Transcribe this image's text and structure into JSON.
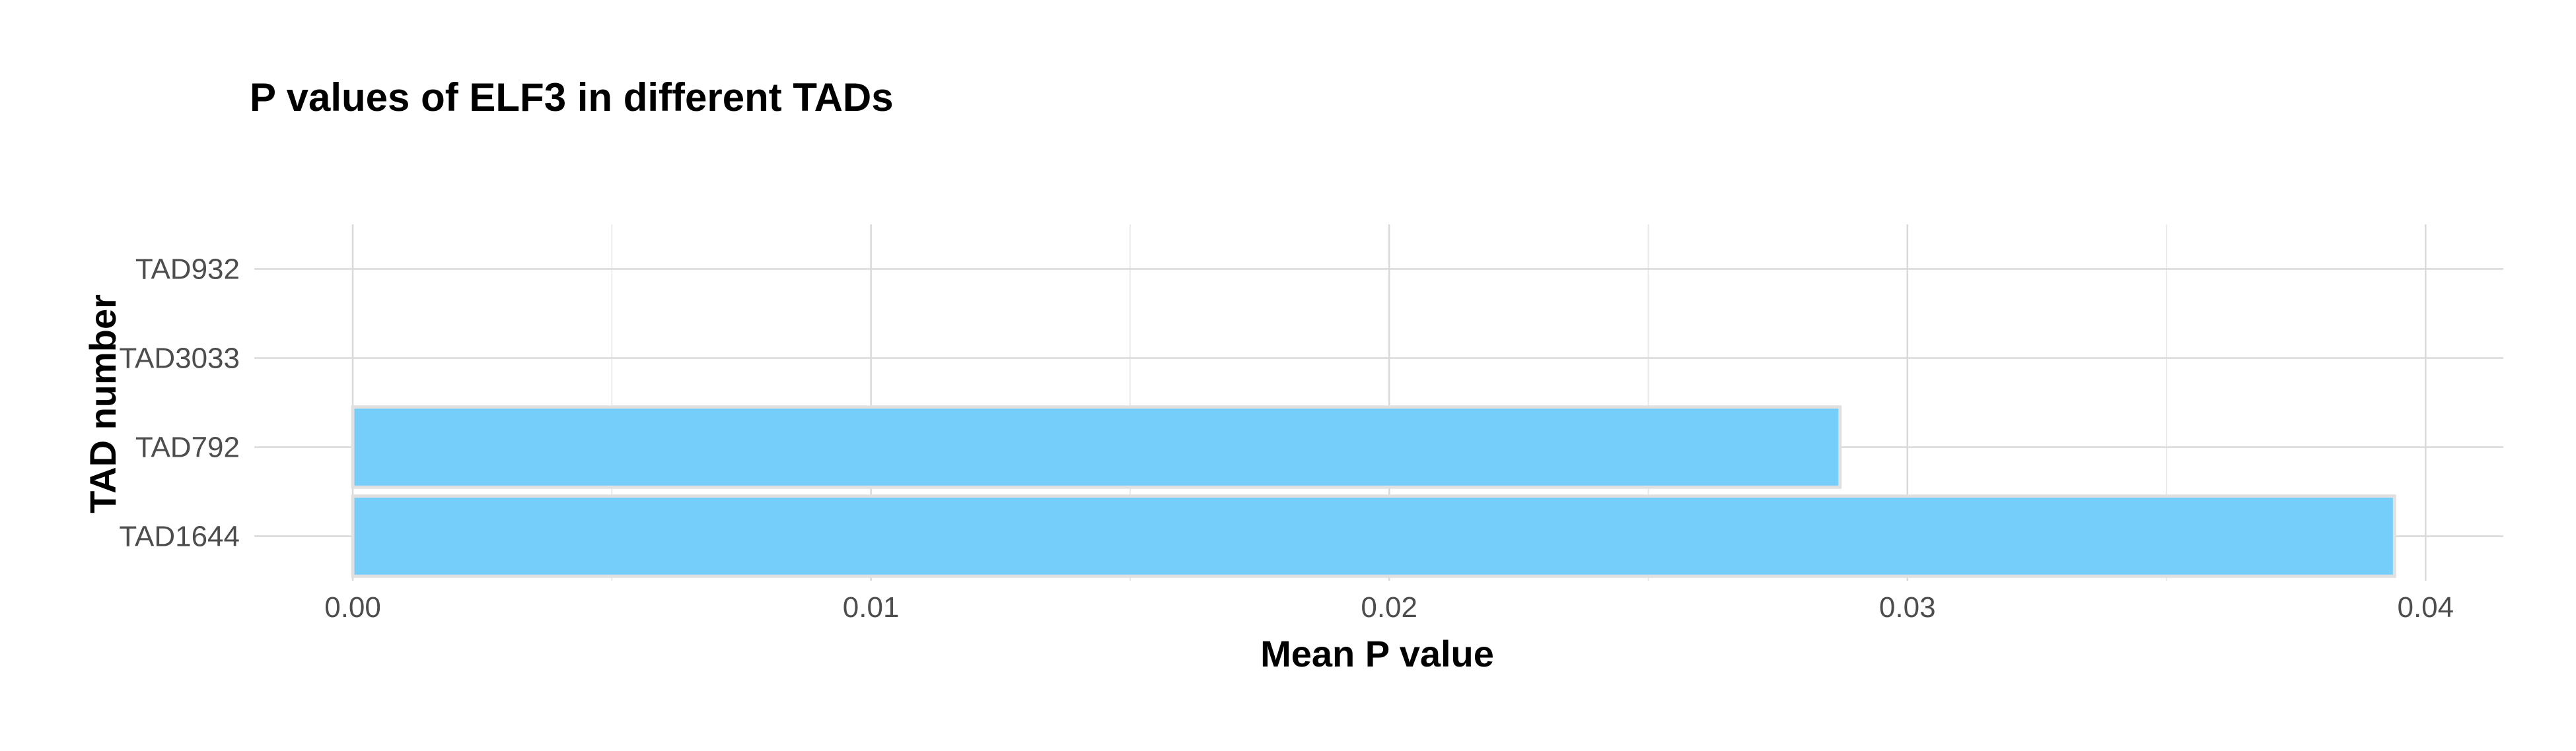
{
  "chart_data": {
    "type": "bar",
    "orientation": "horizontal",
    "title": "P values of ELF3 in different TADs",
    "xlabel": "Mean P value",
    "ylabel": "TAD number",
    "categories": [
      "TAD932",
      "TAD3033",
      "TAD792",
      "TAD1644"
    ],
    "values": [
      0.0,
      0.0,
      0.0287,
      0.0394
    ],
    "xlim": [
      -0.0019,
      0.0415
    ],
    "xticks": [
      0.0,
      0.01,
      0.02,
      0.03,
      0.04
    ],
    "xtick_labels": [
      "0.00",
      "0.01",
      "0.02",
      "0.03",
      "0.04"
    ],
    "bar_color": "#75cef9",
    "grid": true,
    "legend": "none"
  }
}
